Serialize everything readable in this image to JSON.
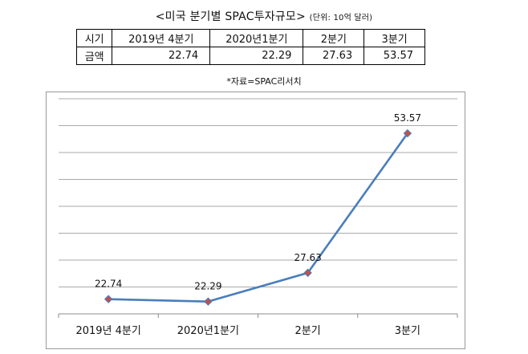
{
  "title": {
    "main": "<미국 분기별 SPAC투자규모>",
    "unit": "(단위: 10억 달러)"
  },
  "table": {
    "header_label": "시기",
    "row_label": "금액",
    "columns": [
      "2019년 4분기",
      "2020년1분기",
      "2분기",
      "3분기"
    ],
    "values": [
      "22.74",
      "22.29",
      "27.63",
      "53.57"
    ]
  },
  "source": "*자료=SPAC리서치",
  "chart_data": {
    "type": "line",
    "categories": [
      "2019년 4분기",
      "2020년1분기",
      "2분기",
      "3분기"
    ],
    "series": [
      {
        "values": [
          22.74,
          22.29,
          27.63,
          53.57
        ],
        "color": "#4a7ebb",
        "marker_color": "#c0504d"
      }
    ],
    "data_labels": [
      "22.74",
      "22.29",
      "27.63",
      "53.57"
    ],
    "ylim": [
      20,
      60
    ],
    "y_gridline_step": 5,
    "grid": true,
    "y_tick_labels_shown": false,
    "legend": "none"
  }
}
